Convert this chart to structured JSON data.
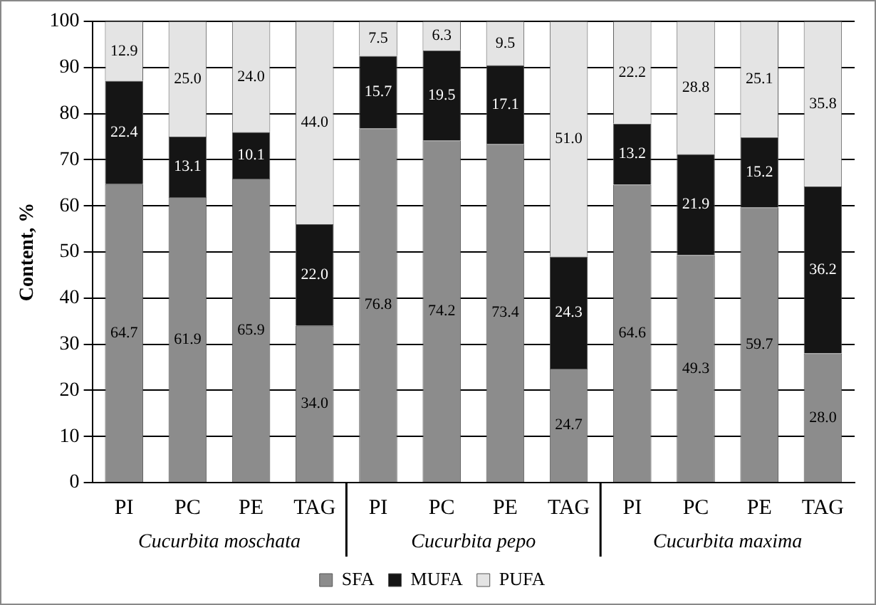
{
  "chart_data": {
    "type": "bar",
    "stacked": true,
    "ylabel": "Content, %",
    "categories": [
      "PI",
      "PC",
      "PE",
      "TAG",
      "PI",
      "PC",
      "PE",
      "TAG",
      "PI",
      "PC",
      "PE",
      "TAG"
    ],
    "series": [
      {
        "name": "SFA",
        "color": "#8c8c8c",
        "values": [
          64.7,
          61.9,
          65.9,
          34.0,
          76.8,
          74.2,
          73.4,
          24.7,
          64.6,
          49.3,
          59.7,
          28.0
        ],
        "value_labels": [
          "64.7",
          "61.9",
          "65.9",
          "34.0",
          "76.8",
          "74.2",
          "73.4",
          "24.7",
          "64.6",
          "49.3",
          "59.7",
          "28.0"
        ]
      },
      {
        "name": "MUFA",
        "color": "#151515",
        "values": [
          22.4,
          13.1,
          10.1,
          22.0,
          15.7,
          19.5,
          17.1,
          24.3,
          13.2,
          21.9,
          15.2,
          36.2
        ],
        "value_labels": [
          "22.4",
          "13.1",
          "10.1",
          "22.0",
          "15.7",
          "19.5",
          "17.1",
          "24.3",
          "13.2",
          "21.9",
          "15.2",
          "36.2"
        ]
      },
      {
        "name": "PUFA",
        "color": "#e4e4e4",
        "values": [
          12.9,
          25.0,
          24.0,
          44.0,
          7.5,
          6.3,
          9.5,
          51.0,
          22.2,
          28.8,
          25.1,
          35.8
        ],
        "value_labels": [
          "12.9",
          "25.0",
          "24.0",
          "44.0",
          "7.5",
          "6.3",
          "9.5",
          "51.0",
          "22.2",
          "28.8",
          "25.1",
          "35.8"
        ]
      }
    ],
    "ylim": [
      0,
      100
    ],
    "yticks": [
      0,
      10,
      20,
      30,
      40,
      50,
      60,
      70,
      80,
      90,
      100
    ],
    "grid": "y",
    "legend": "bottom",
    "annotations": [
      "Cucurbita moschata",
      "Cucurbita pepo",
      "Cucurbita maxima"
    ]
  }
}
